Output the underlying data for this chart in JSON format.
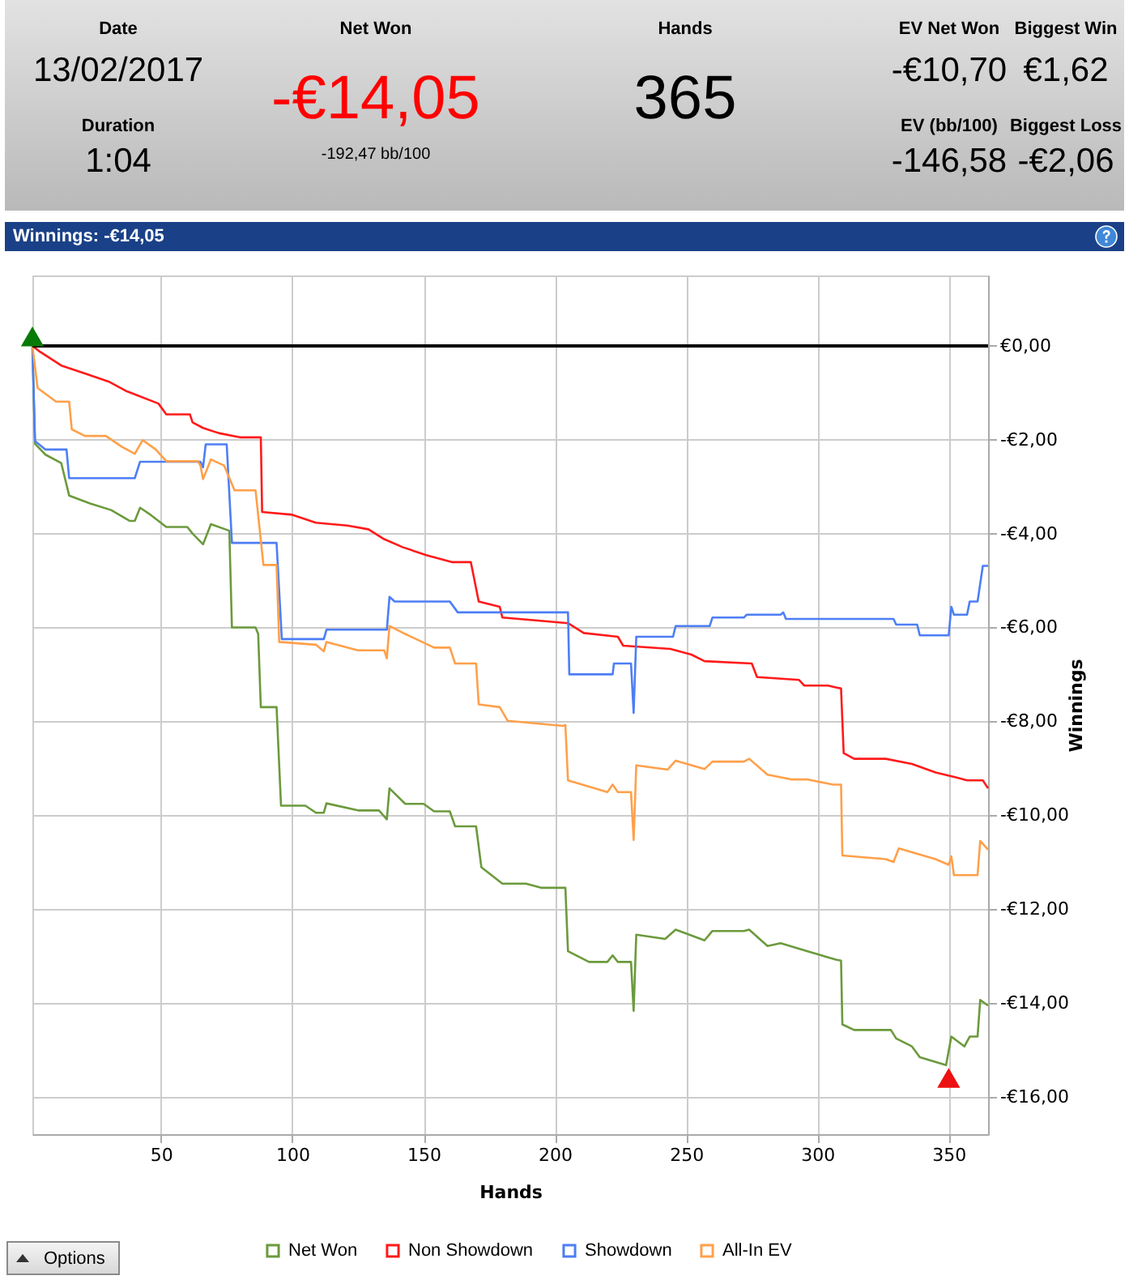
{
  "chart_data": [
    {
      "type": "other",
      "annotations": [
        "Date",
        "13/02/2017",
        "Duration",
        "1:04",
        "Net Won",
        "-€14,05",
        "-192,47 bb/100",
        "Hands",
        "365",
        "EV Net Won",
        "-€10,70",
        "Biggest Win",
        "€1,62",
        "EV (bb/100)",
        "-146,58",
        "Biggest Loss",
        "-€2,06"
      ]
    },
    {
      "type": "line",
      "title": "Winnings: -€14,05",
      "xlabel": "Hands",
      "ylabel": "Winnings",
      "annotations": [
        "Options"
      ],
      "xlim": [
        1,
        365
      ],
      "xticks": [
        50,
        100,
        150,
        200,
        250,
        300,
        350
      ],
      "ylim": [
        -16.8,
        1.5
      ],
      "yticks": [
        {
          "value": 0,
          "label": "€0,00"
        },
        {
          "value": -2,
          "label": "-€2,00"
        },
        {
          "value": -4,
          "label": "-€4,00"
        },
        {
          "value": -6,
          "label": "-€6,00"
        },
        {
          "value": -8,
          "label": "-€8,00"
        },
        {
          "value": -10,
          "label": "-€10,00"
        },
        {
          "value": -12,
          "label": "-€12,00"
        },
        {
          "value": -14,
          "label": "-€14,00"
        },
        {
          "value": -16,
          "label": "-€16,00"
        }
      ],
      "grid": true,
      "legend": "bottom",
      "ref_lines": [
        {
          "axis": "y",
          "value": 0,
          "color": "#000000"
        }
      ],
      "series": [
        {
          "name": "Net Won",
          "color": "#6b9a3c",
          "x": [
            1,
            2,
            6,
            12,
            15,
            23,
            31,
            38,
            40,
            42,
            46,
            52,
            60,
            62,
            66,
            69,
            76,
            77,
            86,
            87,
            88,
            94,
            95.7,
            105,
            109,
            112,
            113,
            125,
            133,
            136,
            137,
            143,
            150,
            154,
            160,
            162,
            170,
            172,
            180,
            189,
            195,
            204,
            205,
            213,
            220,
            222,
            224,
            229,
            230,
            231,
            242,
            246,
            257,
            260,
            272,
            274,
            281,
            286,
            296,
            307,
            309,
            309.5,
            314,
            328,
            330,
            336,
            339,
            349,
            351,
            356,
            358,
            361,
            362,
            365
          ],
          "values": [
            0,
            -2.09,
            -2.32,
            -2.5,
            -3.19,
            -3.36,
            -3.5,
            -3.73,
            -3.73,
            -3.45,
            -3.6,
            -3.86,
            -3.86,
            -4.0,
            -4.23,
            -3.8,
            -3.94,
            -6.0,
            -6.0,
            -6.14,
            -7.7,
            -7.7,
            -9.8,
            -9.8,
            -9.95,
            -9.95,
            -9.75,
            -9.9,
            -9.9,
            -10.09,
            -9.43,
            -9.76,
            -9.76,
            -9.92,
            -9.92,
            -10.24,
            -10.24,
            -11.11,
            -11.46,
            -11.46,
            -11.55,
            -11.55,
            -12.9,
            -13.13,
            -13.13,
            -12.99,
            -13.13,
            -13.13,
            -14.17,
            -12.55,
            -12.64,
            -12.44,
            -12.67,
            -12.47,
            -12.47,
            -12.44,
            -12.79,
            -12.73,
            -12.9,
            -13.08,
            -13.1,
            -14.46,
            -14.58,
            -14.58,
            -14.76,
            -14.93,
            -15.16,
            -15.33,
            -14.72,
            -14.93,
            -14.72,
            -14.72,
            -13.94,
            -14.06
          ]
        },
        {
          "name": "Non Showdown",
          "color": "#ff1a1a",
          "x": [
            1,
            4,
            12,
            21,
            30,
            37,
            49,
            52,
            61,
            62,
            66,
            72,
            80,
            88,
            88.5,
            100,
            109,
            121,
            129,
            135,
            142,
            151,
            161,
            168,
            171,
            179,
            180,
            205,
            211,
            224,
            226,
            244,
            252,
            257,
            275,
            277,
            293,
            295,
            304,
            308,
            309,
            310,
            314,
            326,
            336,
            345,
            353,
            357,
            363,
            365
          ],
          "values": [
            0,
            -0.13,
            -0.42,
            -0.59,
            -0.76,
            -0.97,
            -1.23,
            -1.46,
            -1.46,
            -1.63,
            -1.75,
            -1.86,
            -1.95,
            -1.95,
            -3.54,
            -3.6,
            -3.77,
            -3.83,
            -3.91,
            -4.12,
            -4.29,
            -4.46,
            -4.61,
            -4.61,
            -5.45,
            -5.56,
            -5.79,
            -5.91,
            -6.12,
            -6.2,
            -6.39,
            -6.46,
            -6.58,
            -6.72,
            -6.77,
            -7.06,
            -7.12,
            -7.24,
            -7.24,
            -7.29,
            -7.3,
            -8.68,
            -8.8,
            -8.8,
            -8.91,
            -9.09,
            -9.2,
            -9.26,
            -9.26,
            -9.43
          ]
        },
        {
          "name": "Showdown",
          "color": "#4d7ef5",
          "x": [
            1,
            2,
            6,
            14,
            15,
            40,
            42,
            65,
            66,
            67,
            75,
            77,
            94,
            96,
            112,
            113,
            136,
            137,
            139,
            160,
            163,
            205,
            205.5,
            222,
            222.5,
            229,
            230,
            231,
            245,
            246,
            259,
            260,
            272,
            273,
            286,
            287,
            288,
            329,
            330,
            338,
            339,
            350,
            351,
            352,
            357,
            358,
            361,
            363,
            365
          ],
          "values": [
            0,
            -2.03,
            -2.21,
            -2.21,
            -2.82,
            -2.82,
            -2.47,
            -2.47,
            -2.59,
            -2.1,
            -2.1,
            -4.2,
            -4.2,
            -6.25,
            -6.25,
            -6.05,
            -6.05,
            -5.35,
            -5.45,
            -5.45,
            -5.68,
            -5.68,
            -7.0,
            -7.0,
            -6.77,
            -6.77,
            -7.82,
            -6.2,
            -6.2,
            -5.97,
            -5.97,
            -5.79,
            -5.79,
            -5.73,
            -5.73,
            -5.68,
            -5.82,
            -5.82,
            -5.94,
            -5.94,
            -6.17,
            -6.17,
            -5.56,
            -5.73,
            -5.73,
            -5.45,
            -5.45,
            -4.69,
            -4.69
          ]
        },
        {
          "name": "All-In EV",
          "color": "#ffa04a",
          "x": [
            1,
            3,
            10,
            15,
            16,
            21,
            29,
            35,
            40,
            43,
            48,
            52,
            64,
            65,
            66,
            69,
            74,
            78,
            86,
            89,
            94,
            95,
            109,
            112,
            113,
            125,
            135,
            136,
            137,
            143,
            154,
            160,
            162,
            170,
            171,
            179,
            182,
            203,
            204,
            205,
            220,
            222,
            224,
            229,
            230,
            231,
            243,
            246,
            257,
            260,
            272,
            274,
            281,
            290,
            296,
            306,
            309,
            309.5,
            326,
            329,
            331,
            345,
            350,
            351,
            352,
            361,
            362,
            365
          ],
          "values": [
            0,
            -0.9,
            -1.19,
            -1.19,
            -1.78,
            -1.92,
            -1.92,
            -2.15,
            -2.3,
            -2.01,
            -2.21,
            -2.46,
            -2.46,
            -2.55,
            -2.84,
            -2.42,
            -2.55,
            -3.08,
            -3.08,
            -4.67,
            -4.67,
            -6.31,
            -6.37,
            -6.51,
            -6.31,
            -6.49,
            -6.49,
            -6.66,
            -5.97,
            -6.14,
            -6.43,
            -6.43,
            -6.77,
            -6.77,
            -7.64,
            -7.7,
            -7.99,
            -8.1,
            -8.08,
            -9.26,
            -9.51,
            -9.35,
            -9.51,
            -9.51,
            -10.53,
            -8.94,
            -9.03,
            -8.84,
            -9.02,
            -8.86,
            -8.86,
            -8.8,
            -9.14,
            -9.24,
            -9.24,
            -9.35,
            -9.35,
            -10.86,
            -10.94,
            -11.0,
            -10.71,
            -10.94,
            -11.06,
            -10.88,
            -11.28,
            -11.28,
            -10.55,
            -10.74
          ]
        },
        {
          "type": "scatter",
          "marker": "triangle",
          "color": "#087a08",
          "x": [
            1
          ],
          "values": [
            0.2
          ]
        },
        {
          "type": "scatter",
          "marker": "triangle",
          "color": "#ee1111",
          "x": [
            350
          ],
          "values": [
            -15.6
          ]
        }
      ]
    }
  ]
}
